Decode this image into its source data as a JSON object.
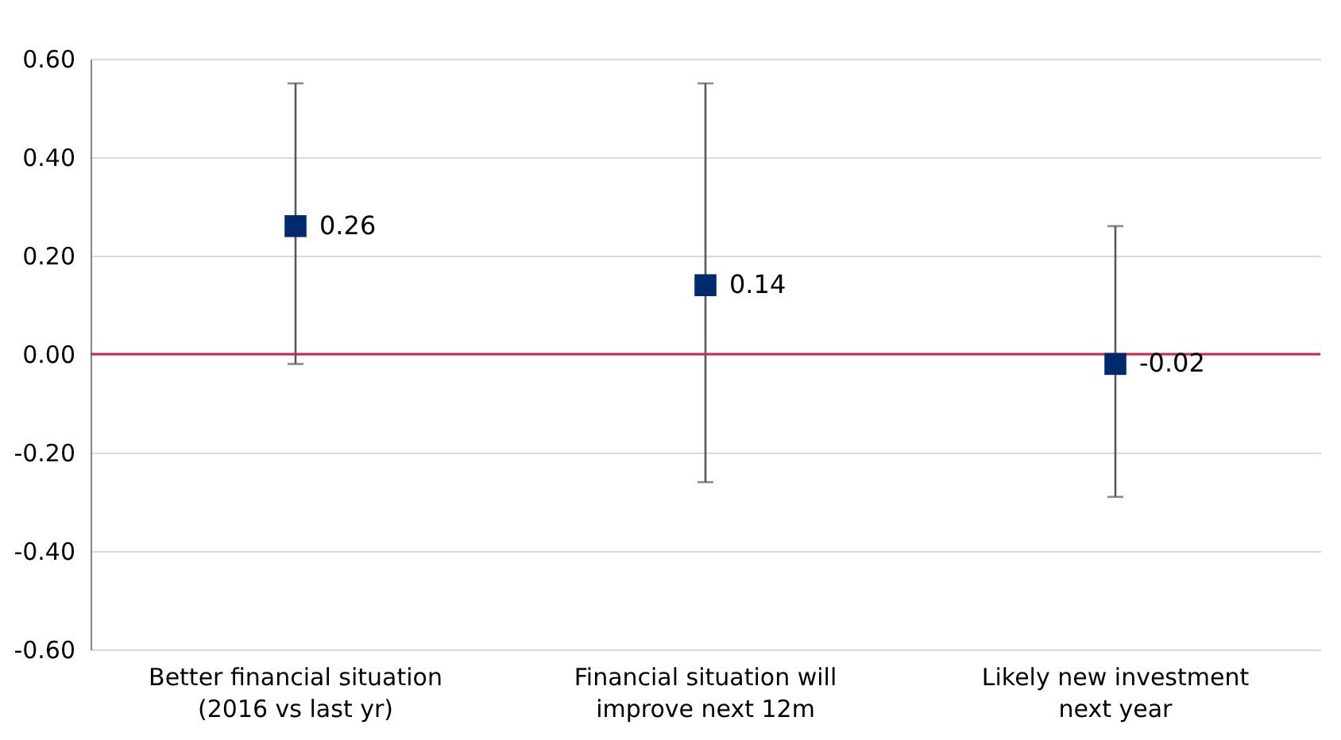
{
  "chart_data": {
    "type": "scatter",
    "categories": [
      "Better financial situation\n(2016 vs last yr)",
      "Financial situation will\nimprove next 12m",
      "Likely new investment\nnext year"
    ],
    "series": [
      {
        "color": "#002a6c",
        "values": [
          0.26,
          0.14,
          -0.02
        ],
        "errors": [
          [
            -0.02,
            0.55
          ],
          [
            -0.26,
            0.55
          ],
          [
            -0.29,
            0.26
          ]
        ]
      }
    ],
    "ylim": [
      -0.6,
      0.6
    ],
    "yticks": [
      {
        "value": -0.6,
        "label": "-0.60"
      },
      {
        "value": -0.4,
        "label": "-0.40"
      },
      {
        "value": -0.2,
        "label": "-0.20"
      },
      {
        "value": 0,
        "label": "0.00"
      },
      {
        "value": 0.2,
        "label": "0.20"
      },
      {
        "value": 0.4,
        "label": "0.40"
      },
      {
        "value": 0.6,
        "label": "0.60"
      }
    ],
    "ref_lines": [
      {
        "axis": "y",
        "value": 0,
        "color": "#c8294f"
      }
    ],
    "grid": "y",
    "marker": "square",
    "data_labels": true
  }
}
